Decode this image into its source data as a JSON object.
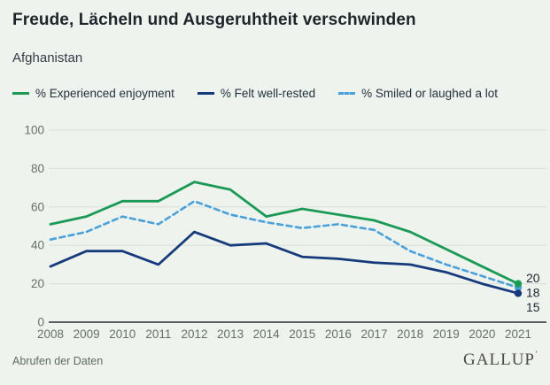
{
  "header": {
    "title": "Freude, Lächeln und Ausgeruhtheit verschwinden",
    "subtitle": "Afghanistan"
  },
  "footer": {
    "data_link": "Abrufen der Daten",
    "brand": "GALLUP",
    "brand_mark": "’"
  },
  "colors": {
    "background": "#eef3ee",
    "grid": "#d9ded8",
    "axis": "#2b2f33",
    "tick_text": "#667066",
    "title_text": "#1d242b",
    "label_text": "#1d2730",
    "enjoyment_green": "#1a9a55",
    "well_rested_navy": "#173a7d",
    "smiled_blue": "#4aa1da"
  },
  "chart_data": {
    "type": "line",
    "title": "Freude, Lächeln und Ausgeruhtheit verschwinden",
    "subtitle": "Afghanistan",
    "x": [
      "2008",
      "2009",
      "2010",
      "2011",
      "2012",
      "2013",
      "2014",
      "2015",
      "2016",
      "2017",
      "2018",
      "2019",
      "2020",
      "2021"
    ],
    "series": [
      {
        "name": "% Experienced enjoyment",
        "color": "#1a9a55",
        "style": "solid",
        "values": [
          51,
          55,
          63,
          63,
          73,
          69,
          55,
          59,
          56,
          53,
          47,
          38,
          29,
          20
        ]
      },
      {
        "name": "% Felt well-rested",
        "color": "#173a7d",
        "style": "solid",
        "values": [
          29,
          37,
          37,
          30,
          47,
          40,
          41,
          34,
          33,
          31,
          30,
          26,
          20,
          15
        ]
      },
      {
        "name": "% Smiled or laughed a lot",
        "color": "#4aa1da",
        "style": "dashed",
        "values": [
          43,
          47,
          55,
          51,
          63,
          56,
          52,
          49,
          51,
          48,
          37,
          30,
          24,
          18
        ]
      }
    ],
    "ylim": [
      0,
      100
    ],
    "yticks": [
      0,
      20,
      40,
      60,
      80,
      100
    ],
    "grid": true,
    "legend_position": "top",
    "end_labels": [
      "20",
      "18",
      "15"
    ]
  }
}
